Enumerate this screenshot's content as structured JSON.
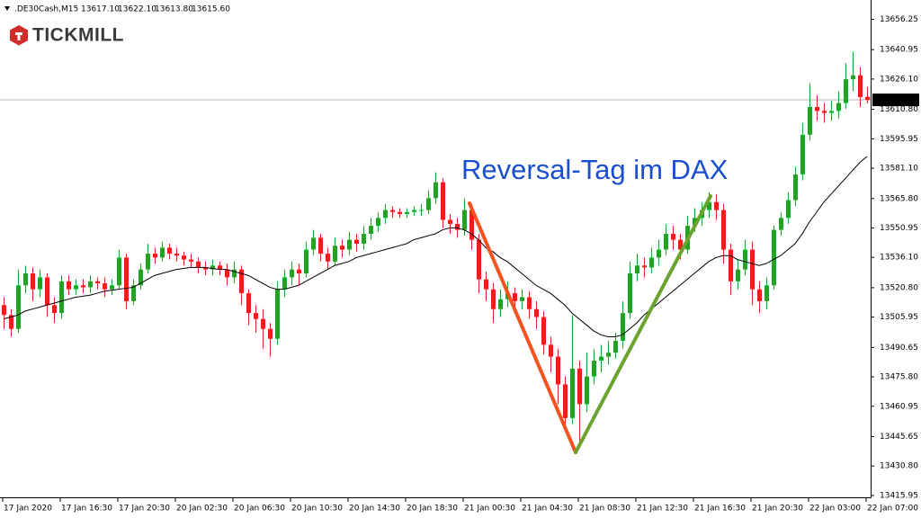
{
  "chart_data": {
    "type": "candlestick",
    "header": {
      "symbol": ".DE30Cash,M15",
      "ohlc": [
        "13617.10",
        "13622.10",
        "13613.80",
        "13615.60"
      ]
    },
    "brand": "TICKMILL",
    "annotation": "Reversal-Tag im DAX",
    "up_color": "#22a322",
    "down_color": "#e2231a",
    "ylim": [
      13415,
      13666
    ],
    "yticks": [
      13656.25,
      13640.95,
      {
        "value": 13626.1,
        "label": "13626.10"
      },
      {
        "value": 13610.8,
        "label": "13610.80"
      },
      13595.95,
      {
        "value": 13581.1,
        "label": "13581.10"
      },
      {
        "value": 13565.8,
        "label": "13565.80"
      },
      13550.95,
      {
        "value": 13536.1,
        "label": "13536.10"
      },
      {
        "value": 13520.8,
        "label": "13520.80"
      },
      13505.95,
      13490.65,
      {
        "value": 13475.8,
        "label": "13475.80"
      },
      13460.95,
      13445.65,
      {
        "value": 13430.8,
        "label": "13430.80"
      },
      13415.95
    ],
    "last_price": {
      "value": 13615.6,
      "label": "13615.60"
    },
    "categories": [
      "17 Jan 2020",
      null,
      null,
      null,
      null,
      null,
      null,
      null,
      "17 Jan 16:30",
      null,
      null,
      null,
      null,
      null,
      null,
      null,
      "17 Jan 20:30",
      null,
      null,
      null,
      null,
      null,
      null,
      null,
      "20 Jan 02:30",
      null,
      null,
      null,
      null,
      null,
      null,
      null,
      "20 Jan 06:30",
      null,
      null,
      null,
      null,
      null,
      null,
      null,
      "20 Jan 10:30",
      null,
      null,
      null,
      null,
      null,
      null,
      null,
      "20 Jan 14:30",
      null,
      null,
      null,
      null,
      null,
      null,
      null,
      "20 Jan 18:30",
      null,
      null,
      null,
      null,
      null,
      null,
      null,
      "21 Jan 00:30",
      null,
      null,
      null,
      null,
      null,
      null,
      null,
      "21 Jan 04:30",
      null,
      null,
      null,
      null,
      null,
      null,
      null,
      "21 Jan 08:30",
      null,
      null,
      null,
      null,
      null,
      null,
      null,
      "21 Jan 12:30",
      null,
      null,
      null,
      null,
      null,
      null,
      null,
      "21 Jan 16:30",
      null,
      null,
      null,
      null,
      null,
      null,
      null,
      "21 Jan 20:30",
      null,
      null,
      null,
      null,
      null,
      null,
      null,
      "22 Jan 03:00",
      null,
      null,
      null,
      null,
      null,
      null,
      null,
      "22 Jan 07:00"
    ],
    "candles": {
      "open": [
        13512,
        13507,
        13500,
        13522,
        13528,
        13520,
        13526,
        13512,
        13508,
        13524,
        13520,
        13522,
        13521,
        13524,
        13523,
        13520,
        13522,
        13536,
        13514,
        13522,
        13530,
        13538,
        13536,
        13541,
        13538,
        13537,
        13535,
        13534,
        13531,
        13530,
        13532,
        13530,
        13526,
        13530,
        13518,
        13508,
        13505,
        13500,
        13495,
        13520,
        13526,
        13530,
        13528,
        13540,
        13546,
        13538,
        13534,
        13542,
        13540,
        13545,
        13543,
        13548,
        13552,
        13556,
        13560,
        13559,
        13558,
        13559,
        13560,
        13560,
        13566,
        13574,
        13555,
        13553,
        13550,
        13560,
        13545,
        13525,
        13520,
        13510,
        13515,
        13518,
        13514,
        13516,
        13510,
        13506,
        13492,
        13486,
        13472,
        13455,
        13480,
        13462,
        13476,
        13484,
        13486,
        13488,
        13494,
        13508,
        13528,
        13532,
        13531,
        13536,
        13540,
        13548,
        13545,
        13540,
        13552,
        13556,
        13560,
        13564,
        13560,
        13540,
        13524,
        13530,
        13540,
        13520,
        13514,
        13522,
        13550,
        13556,
        13565,
        13578,
        13598,
        13612,
        13610,
        13609,
        13610,
        13614,
        13626,
        13628,
        13617.1
      ],
      "high": [
        13516,
        13510,
        13530,
        13532,
        13531,
        13530,
        13528,
        13516,
        13527,
        13527,
        13525,
        13525,
        13527,
        13526,
        13526,
        13525,
        13540,
        13538,
        13525,
        13533,
        13543,
        13541,
        13544,
        13543,
        13541,
        13539,
        13538,
        13536,
        13534,
        13535,
        13534,
        13533,
        13534,
        13532,
        13520,
        13512,
        13510,
        13503,
        13524,
        13530,
        13534,
        13533,
        13544,
        13550,
        13548,
        13541,
        13546,
        13545,
        13549,
        13548,
        13552,
        13556,
        13559,
        13563,
        13562,
        13561,
        13561,
        13562,
        13563,
        13570,
        13579,
        13576,
        13558,
        13556,
        13566,
        13563,
        13548,
        13529,
        13523,
        13520,
        13524,
        13521,
        13520,
        13519,
        13514,
        13509,
        13496,
        13490,
        13476,
        13507,
        13484,
        13488,
        13490,
        13492,
        13494,
        13498,
        13514,
        13534,
        13538,
        13536,
        13541,
        13545,
        13553,
        13552,
        13548,
        13557,
        13561,
        13564,
        13569,
        13568,
        13563,
        13543,
        13535,
        13545,
        13544,
        13524,
        13526,
        13552,
        13559,
        13569,
        13582,
        13604,
        13624,
        13618,
        13614,
        13615,
        13620,
        13634,
        13640,
        13632,
        13622.1
      ],
      "low": [
        13500,
        13496,
        13498,
        13518,
        13514,
        13516,
        13506,
        13503,
        13505,
        13517,
        13517,
        13518,
        13518,
        13520,
        13516,
        13517,
        13520,
        13510,
        13512,
        13520,
        13528,
        13533,
        13534,
        13535,
        13534,
        13532,
        13531,
        13528,
        13527,
        13527,
        13527,
        13522,
        13523,
        13512,
        13502,
        13498,
        13490,
        13486,
        13492,
        13516,
        13522,
        13522,
        13526,
        13537,
        13534,
        13530,
        13532,
        13536,
        13537,
        13539,
        13540,
        13545,
        13549,
        13553,
        13556,
        13556,
        13556,
        13557,
        13557,
        13558,
        13563,
        13551,
        13548,
        13546,
        13547,
        13540,
        13518,
        13514,
        13503,
        13506,
        13511,
        13509,
        13510,
        13505,
        13500,
        13487,
        13478,
        13462,
        13448,
        13452,
        13443,
        13458,
        13472,
        13478,
        13482,
        13485,
        13490,
        13505,
        13524,
        13526,
        13528,
        13532,
        13537,
        13540,
        13535,
        13538,
        13549,
        13552,
        13556,
        13555,
        13533,
        13517,
        13520,
        13527,
        13512,
        13508,
        13510,
        13520,
        13547,
        13553,
        13562,
        13575,
        13595,
        13605,
        13604,
        13605,
        13606,
        13611,
        13620,
        13612,
        13613.8
      ],
      "close": [
        13507,
        13500,
        13522,
        13528,
        13520,
        13526,
        13512,
        13508,
        13524,
        13520,
        13522,
        13521,
        13524,
        13523,
        13520,
        13522,
        13536,
        13514,
        13522,
        13530,
        13538,
        13536,
        13541,
        13538,
        13537,
        13535,
        13534,
        13531,
        13530,
        13532,
        13530,
        13526,
        13530,
        13518,
        13508,
        13505,
        13500,
        13495,
        13520,
        13526,
        13530,
        13528,
        13540,
        13546,
        13538,
        13534,
        13542,
        13540,
        13545,
        13543,
        13548,
        13552,
        13556,
        13560,
        13559,
        13558,
        13559,
        13560,
        13560,
        13566,
        13574,
        13555,
        13553,
        13550,
        13560,
        13545,
        13525,
        13520,
        13510,
        13515,
        13518,
        13514,
        13516,
        13510,
        13506,
        13492,
        13486,
        13472,
        13455,
        13480,
        13462,
        13476,
        13484,
        13486,
        13488,
        13494,
        13508,
        13528,
        13532,
        13531,
        13536,
        13540,
        13548,
        13545,
        13540,
        13552,
        13556,
        13560,
        13564,
        13560,
        13540,
        13524,
        13530,
        13540,
        13520,
        13514,
        13522,
        13550,
        13556,
        13565,
        13578,
        13598,
        13612,
        13610,
        13609,
        13610,
        13614,
        13626,
        13628,
        13617,
        13615.6
      ]
    },
    "ma": {
      "color": "#000000",
      "values": [
        13505,
        13506,
        13507,
        13509,
        13510,
        13511,
        13512,
        13513,
        13514,
        13515,
        13516,
        13516.5,
        13517,
        13518,
        13519,
        13519.5,
        13520,
        13520.5,
        13521,
        13523,
        13525,
        13527,
        13528,
        13529,
        13530,
        13530.5,
        13531,
        13531,
        13531,
        13530.5,
        13530,
        13530,
        13529,
        13528,
        13527,
        13525,
        13523,
        13521,
        13520,
        13520,
        13521,
        13522,
        13524,
        13526,
        13528,
        13530,
        13532,
        13533,
        13534,
        13536,
        13537,
        13538,
        13539,
        13540,
        13541,
        13542,
        13543,
        13545,
        13546,
        13547,
        13548,
        13550,
        13551,
        13551,
        13550,
        13548,
        13545,
        13541,
        13539,
        13536,
        13534,
        13531,
        13528,
        13525,
        13522,
        13520,
        13518,
        13515,
        13512,
        13508,
        13505,
        13502,
        13499,
        13497,
        13496,
        13496,
        13497,
        13500,
        13503,
        13507,
        13510,
        13513,
        13516,
        13519,
        13522,
        13525,
        13528,
        13531,
        13534,
        13536,
        13537,
        13537,
        13535,
        13534,
        13533,
        13532,
        13533,
        13535,
        13537,
        13540,
        13543,
        13548,
        13554,
        13559,
        13564,
        13568,
        13572,
        13576,
        13580,
        13584,
        13587
      ]
    }
  }
}
